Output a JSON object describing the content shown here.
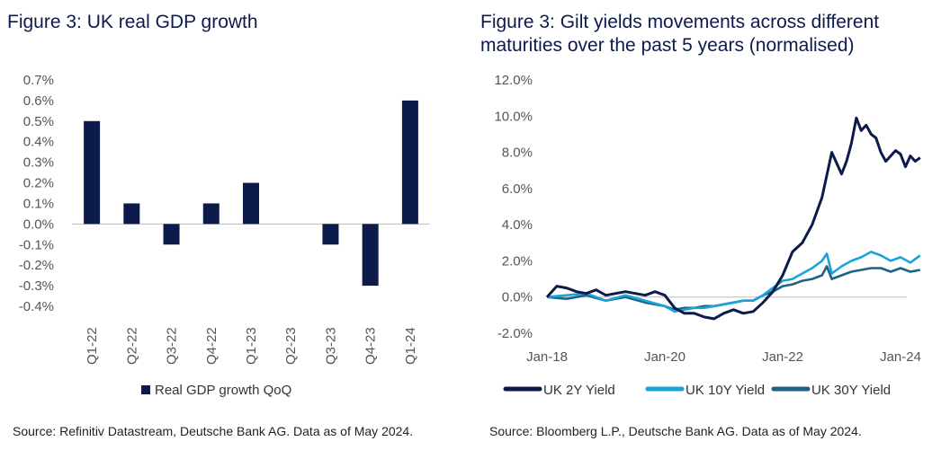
{
  "chart_data": [
    {
      "type": "bar",
      "title": "Figure 3: UK real GDP growth",
      "categories": [
        "Q1-22",
        "Q2-22",
        "Q3-22",
        "Q4-22",
        "Q1-23",
        "Q2-23",
        "Q3-23",
        "Q4-23",
        "Q1-24"
      ],
      "series": [
        {
          "name": "Real GDP growth QoQ",
          "values": [
            0.5,
            0.1,
            -0.1,
            0.1,
            0.2,
            0.0,
            -0.1,
            -0.3,
            0.6
          ],
          "color": "#0d1b4b"
        }
      ],
      "ylim": [
        -0.4,
        0.7
      ],
      "yticks": [
        "0.7%",
        "0.6%",
        "0.5%",
        "0.4%",
        "0.3%",
        "0.2%",
        "0.1%",
        "0.0%",
        "-0.1%",
        "-0.2%",
        "-0.3%",
        "-0.4%"
      ],
      "ytick_values": [
        0.7,
        0.6,
        0.5,
        0.4,
        0.3,
        0.2,
        0.1,
        0.0,
        -0.1,
        -0.2,
        -0.3,
        -0.4
      ],
      "legend": "bottom",
      "source": "Source: Refinitiv Datastream, Deutsche Bank AG. Data as of May 2024."
    },
    {
      "type": "line",
      "title": "Figure 3: Gilt yields movements across different maturities over the past 5 years (normalised)",
      "x_range": [
        "Jan-18",
        "May-24"
      ],
      "xticks": [
        "Jan-18",
        "Jan-20",
        "Jan-22",
        "Jan-24"
      ],
      "xtick_values": [
        0,
        24,
        48,
        72
      ],
      "ylim": [
        -2.0,
        12.0
      ],
      "yticks": [
        "12.0%",
        "10.0%",
        "8.0%",
        "6.0%",
        "4.0%",
        "2.0%",
        "0.0%",
        "-2.0%"
      ],
      "ytick_values": [
        12,
        10,
        8,
        6,
        4,
        2,
        0,
        -2
      ],
      "series": [
        {
          "name": "UK 2Y Yield",
          "color": "#0d1b4b",
          "x": [
            0,
            2,
            4,
            6,
            8,
            10,
            12,
            14,
            16,
            18,
            20,
            22,
            24,
            26,
            28,
            30,
            32,
            34,
            36,
            38,
            40,
            42,
            44,
            46,
            48,
            50,
            52,
            54,
            56,
            58,
            60,
            61,
            62,
            63,
            64,
            65,
            66,
            67,
            68,
            69,
            70,
            71,
            72,
            73,
            74,
            75,
            76
          ],
          "y": [
            0,
            0.6,
            0.5,
            0.3,
            0.2,
            0.4,
            0.1,
            0.2,
            0.3,
            0.2,
            0.1,
            0.3,
            0.1,
            -0.6,
            -0.9,
            -0.9,
            -1.1,
            -1.2,
            -0.9,
            -0.7,
            -0.9,
            -0.8,
            -0.3,
            0.3,
            1.2,
            2.5,
            3.0,
            4.0,
            5.5,
            8.0,
            6.8,
            7.5,
            8.5,
            9.9,
            9.2,
            9.5,
            9.0,
            8.8,
            8.0,
            7.5,
            7.8,
            8.1,
            7.9,
            7.2,
            7.8,
            7.5,
            7.7
          ]
        },
        {
          "name": "UK 10Y Yield",
          "color": "#1aa3d9",
          "x": [
            0,
            4,
            8,
            12,
            16,
            20,
            24,
            26,
            28,
            30,
            32,
            34,
            36,
            38,
            40,
            42,
            44,
            46,
            48,
            50,
            52,
            54,
            56,
            57,
            58,
            60,
            62,
            64,
            66,
            68,
            70,
            72,
            74,
            76
          ],
          "y": [
            0,
            0.1,
            0.2,
            -0.2,
            0.1,
            -0.2,
            -0.5,
            -0.8,
            -0.7,
            -0.6,
            -0.6,
            -0.5,
            -0.4,
            -0.3,
            -0.2,
            -0.2,
            0.1,
            0.5,
            0.9,
            1.0,
            1.3,
            1.6,
            2.0,
            2.4,
            1.3,
            1.7,
            2.0,
            2.2,
            2.5,
            2.3,
            2.0,
            2.2,
            1.9,
            2.3
          ]
        },
        {
          "name": "UK 30Y Yield",
          "color": "#1f6185",
          "x": [
            0,
            4,
            8,
            12,
            16,
            20,
            24,
            26,
            28,
            30,
            32,
            34,
            36,
            38,
            40,
            42,
            44,
            46,
            48,
            50,
            52,
            54,
            56,
            57,
            58,
            60,
            62,
            64,
            66,
            68,
            70,
            72,
            74,
            76
          ],
          "y": [
            0,
            -0.1,
            0.1,
            -0.2,
            0.0,
            -0.3,
            -0.5,
            -0.7,
            -0.6,
            -0.6,
            -0.5,
            -0.5,
            -0.4,
            -0.3,
            -0.2,
            -0.2,
            0.1,
            0.3,
            0.6,
            0.7,
            0.9,
            1.0,
            1.2,
            1.7,
            1.0,
            1.2,
            1.4,
            1.5,
            1.6,
            1.6,
            1.4,
            1.6,
            1.4,
            1.5
          ]
        }
      ],
      "legend": "bottom",
      "source": "Source: Bloomberg L.P., Deutsche Bank AG. Data as of May 2024."
    }
  ]
}
